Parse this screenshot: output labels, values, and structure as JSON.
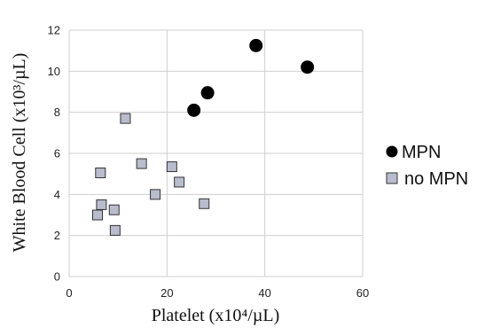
{
  "chart_data": {
    "type": "scatter",
    "xlabel": "Platelet (x10⁴/µL)",
    "ylabel": "White Blood Cell (x10³/µL)",
    "xlim": [
      0,
      60
    ],
    "ylim": [
      0,
      12
    ],
    "x_ticks": [
      "0",
      "20",
      "40",
      "60"
    ],
    "y_ticks": [
      "0",
      "2",
      "4",
      "6",
      "8",
      "10",
      "12"
    ],
    "grid": true,
    "legend_position": "right",
    "series": [
      {
        "name": "MPN",
        "marker": "circle",
        "color": "#000000",
        "points": [
          {
            "x": 25.5,
            "y": 8.1
          },
          {
            "x": 28.3,
            "y": 8.95
          },
          {
            "x": 38.2,
            "y": 11.25
          },
          {
            "x": 48.7,
            "y": 10.2
          }
        ]
      },
      {
        "name": "no MPN",
        "marker": "square",
        "color": "#b8bccd",
        "points": [
          {
            "x": 5.8,
            "y": 3.0
          },
          {
            "x": 6.4,
            "y": 5.05
          },
          {
            "x": 6.6,
            "y": 3.5
          },
          {
            "x": 9.2,
            "y": 3.25
          },
          {
            "x": 9.4,
            "y": 2.25
          },
          {
            "x": 11.5,
            "y": 7.7
          },
          {
            "x": 14.8,
            "y": 5.5
          },
          {
            "x": 17.6,
            "y": 4.0
          },
          {
            "x": 21.0,
            "y": 5.35
          },
          {
            "x": 22.5,
            "y": 4.6
          },
          {
            "x": 27.6,
            "y": 3.55
          }
        ]
      }
    ]
  }
}
